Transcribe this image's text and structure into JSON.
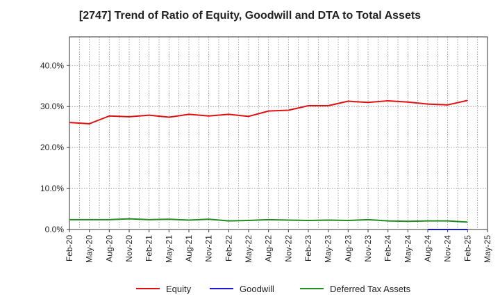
{
  "chart_data": {
    "type": "line",
    "title": "[2747]  Trend of Ratio of Equity, Goodwill and DTA to Total Assets",
    "xlabel": "",
    "ylabel": "",
    "ylim": [
      0,
      47
    ],
    "y_ticks": [
      0,
      10,
      20,
      30,
      40
    ],
    "y_tick_labels": [
      "0.0%",
      "10.0%",
      "20.0%",
      "30.0%",
      "40.0%"
    ],
    "x_tick_labels": [
      "Feb-20",
      "May-20",
      "Aug-20",
      "Nov-20",
      "Feb-21",
      "May-21",
      "Aug-21",
      "Nov-21",
      "Feb-22",
      "May-22",
      "Aug-22",
      "Nov-22",
      "Feb-23",
      "May-23",
      "Aug-23",
      "Nov-23",
      "Feb-24",
      "May-24",
      "Aug-24",
      "Nov-24",
      "Feb-25",
      "May-25"
    ],
    "x": [
      "Feb-20",
      "May-20",
      "Aug-20",
      "Nov-20",
      "Feb-21",
      "May-21",
      "Aug-21",
      "Nov-21",
      "Feb-22",
      "May-22",
      "Aug-22",
      "Nov-22",
      "Feb-23",
      "May-23",
      "Aug-23",
      "Nov-23",
      "Feb-24",
      "May-24",
      "Aug-24",
      "Nov-24",
      "Feb-25"
    ],
    "grid": true,
    "legend_position": "bottom",
    "series": [
      {
        "name": "Equity",
        "color": "#dd1111",
        "values": [
          26.1,
          25.8,
          27.7,
          27.5,
          27.9,
          27.4,
          28.1,
          27.7,
          28.1,
          27.6,
          28.9,
          29.1,
          30.2,
          30.2,
          31.3,
          31.0,
          31.4,
          31.1,
          30.6,
          30.4,
          31.5
        ]
      },
      {
        "name": "Goodwill",
        "color": "#1a1acc",
        "values": [
          null,
          null,
          null,
          null,
          null,
          null,
          null,
          null,
          null,
          null,
          null,
          null,
          null,
          null,
          null,
          null,
          null,
          null,
          0.0,
          0.0,
          0.0
        ]
      },
      {
        "name": "Deferred Tax Assets",
        "color": "#228b22",
        "values": [
          2.4,
          2.4,
          2.4,
          2.6,
          2.4,
          2.5,
          2.3,
          2.5,
          2.1,
          2.2,
          2.4,
          2.3,
          2.2,
          2.3,
          2.2,
          2.4,
          2.1,
          2.0,
          2.1,
          2.1,
          1.8
        ]
      }
    ]
  }
}
